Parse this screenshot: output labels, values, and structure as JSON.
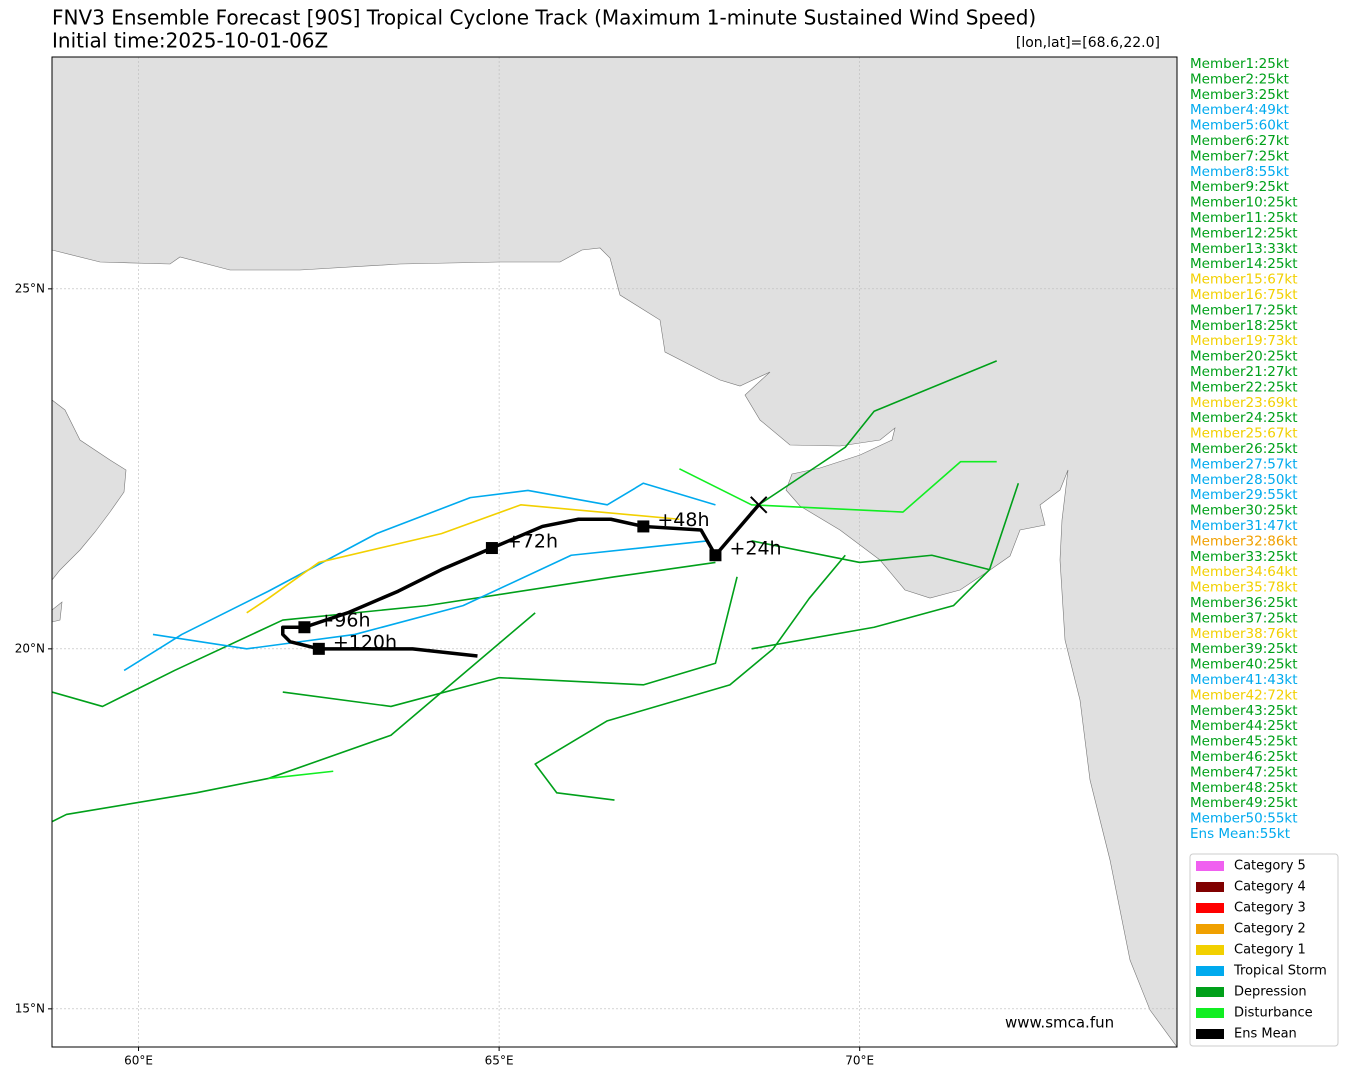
{
  "chart_data": {
    "type": "track-map",
    "title": "FNV3 Ensemble Forecast [90S] Tropical Cyclone Track (Maximum 1-minute Sustained Wind Speed)",
    "subtitle": "Initial time:2025-10-01-06Z",
    "position_label": "[lon,lat]=[68.6,22.0]",
    "watermark": "www.smca.fun",
    "xlim": [
      58.8,
      74.4
    ],
    "ylim": [
      14.47,
      28.22
    ],
    "xticks": [
      {
        "value": 60,
        "label": "60°E"
      },
      {
        "value": 65,
        "label": "65°E"
      },
      {
        "value": 70,
        "label": "70°E"
      }
    ],
    "yticks": [
      {
        "value": 15,
        "label": "15°N"
      },
      {
        "value": 20,
        "label": "20°N"
      },
      {
        "value": 25,
        "label": "25°N"
      }
    ],
    "grid": true,
    "members": [
      {
        "label": "Member1:25kt",
        "color": "#00a01a"
      },
      {
        "label": "Member2:25kt",
        "color": "#00a01a"
      },
      {
        "label": "Member3:25kt",
        "color": "#00a01a"
      },
      {
        "label": "Member4:49kt",
        "color": "#00aaee"
      },
      {
        "label": "Member5:60kt",
        "color": "#00aaee"
      },
      {
        "label": "Member6:27kt",
        "color": "#00a01a"
      },
      {
        "label": "Member7:25kt",
        "color": "#00a01a"
      },
      {
        "label": "Member8:55kt",
        "color": "#00aaee"
      },
      {
        "label": "Member9:25kt",
        "color": "#00a01a"
      },
      {
        "label": "Member10:25kt",
        "color": "#00a01a"
      },
      {
        "label": "Member11:25kt",
        "color": "#00a01a"
      },
      {
        "label": "Member12:25kt",
        "color": "#00a01a"
      },
      {
        "label": "Member13:33kt",
        "color": "#00a01a"
      },
      {
        "label": "Member14:25kt",
        "color": "#00a01a"
      },
      {
        "label": "Member15:67kt",
        "color": "#f2d000"
      },
      {
        "label": "Member16:75kt",
        "color": "#f2d000"
      },
      {
        "label": "Member17:25kt",
        "color": "#00a01a"
      },
      {
        "label": "Member18:25kt",
        "color": "#00a01a"
      },
      {
        "label": "Member19:73kt",
        "color": "#f2d000"
      },
      {
        "label": "Member20:25kt",
        "color": "#00a01a"
      },
      {
        "label": "Member21:27kt",
        "color": "#00a01a"
      },
      {
        "label": "Member22:25kt",
        "color": "#00a01a"
      },
      {
        "label": "Member23:69kt",
        "color": "#f2d000"
      },
      {
        "label": "Member24:25kt",
        "color": "#00a01a"
      },
      {
        "label": "Member25:67kt",
        "color": "#f2d000"
      },
      {
        "label": "Member26:25kt",
        "color": "#00a01a"
      },
      {
        "label": "Member27:57kt",
        "color": "#00aaee"
      },
      {
        "label": "Member28:50kt",
        "color": "#00aaee"
      },
      {
        "label": "Member29:55kt",
        "color": "#00aaee"
      },
      {
        "label": "Member30:25kt",
        "color": "#00a01a"
      },
      {
        "label": "Member31:47kt",
        "color": "#00aaee"
      },
      {
        "label": "Member32:86kt",
        "color": "#f0a000"
      },
      {
        "label": "Member33:25kt",
        "color": "#00a01a"
      },
      {
        "label": "Member34:64kt",
        "color": "#f2d000"
      },
      {
        "label": "Member35:78kt",
        "color": "#f2d000"
      },
      {
        "label": "Member36:25kt",
        "color": "#00a01a"
      },
      {
        "label": "Member37:25kt",
        "color": "#00a01a"
      },
      {
        "label": "Member38:76kt",
        "color": "#f2d000"
      },
      {
        "label": "Member39:25kt",
        "color": "#00a01a"
      },
      {
        "label": "Member40:25kt",
        "color": "#00a01a"
      },
      {
        "label": "Member41:43kt",
        "color": "#00aaee"
      },
      {
        "label": "Member42:72kt",
        "color": "#f2d000"
      },
      {
        "label": "Member43:25kt",
        "color": "#00a01a"
      },
      {
        "label": "Member44:25kt",
        "color": "#00a01a"
      },
      {
        "label": "Member45:25kt",
        "color": "#00a01a"
      },
      {
        "label": "Member46:25kt",
        "color": "#00a01a"
      },
      {
        "label": "Member47:25kt",
        "color": "#00a01a"
      },
      {
        "label": "Member48:25kt",
        "color": "#00a01a"
      },
      {
        "label": "Member49:25kt",
        "color": "#00a01a"
      },
      {
        "label": "Member50:55kt",
        "color": "#00aaee"
      },
      {
        "label": "Ens Mean:55kt",
        "color": "#00aaee"
      }
    ],
    "legend": [
      {
        "name": "Category 5",
        "color": "#f060f0"
      },
      {
        "name": "Category 4",
        "color": "#800000"
      },
      {
        "name": "Category 3",
        "color": "#ff0000"
      },
      {
        "name": "Category 2",
        "color": "#f0a000"
      },
      {
        "name": "Category 1",
        "color": "#f2d000"
      },
      {
        "name": "Tropical Storm",
        "color": "#00aaee"
      },
      {
        "name": "Depression",
        "color": "#00a01a"
      },
      {
        "name": "Disturbance",
        "color": "#11ee22"
      },
      {
        "name": "Ens Mean",
        "color": "#000000"
      }
    ],
    "tracks": [
      {
        "color": "#00a01a",
        "lon": [
          68.6,
          69.8,
          70.2,
          71.9
        ],
        "lat": [
          22.0,
          22.8,
          23.3,
          24.0
        ]
      },
      {
        "color": "#00a01a",
        "lon": [
          68.5,
          70.0,
          71.0,
          71.8,
          72.2
        ],
        "lat": [
          21.5,
          21.2,
          21.3,
          21.1,
          22.3
        ]
      },
      {
        "color": "#00aaee",
        "lon": [
          68.0,
          67.0,
          66.5,
          65.4,
          64.6,
          63.3,
          61.8,
          60.6,
          59.8
        ],
        "lat": [
          22.0,
          22.3,
          22.0,
          22.2,
          22.1,
          21.6,
          20.8,
          20.2,
          19.7
        ]
      },
      {
        "color": "#f2d000",
        "lon": [
          67.5,
          65.3,
          64.2,
          62.5,
          61.8,
          61.5
        ],
        "lat": [
          21.8,
          22.0,
          21.6,
          21.2,
          20.7,
          20.5
        ]
      },
      {
        "color": "#00a01a",
        "lon": [
          68.0,
          66.6,
          64.0,
          62.0,
          60.5,
          59.5,
          58.8
        ],
        "lat": [
          21.2,
          21.0,
          20.6,
          20.4,
          19.7,
          19.2,
          19.4
        ]
      },
      {
        "color": "#00a01a",
        "lon": [
          65.5,
          63.5,
          61.8,
          60.8,
          59.0,
          58.8
        ],
        "lat": [
          20.5,
          18.8,
          18.2,
          18.0,
          17.7,
          17.6
        ]
      },
      {
        "color": "#11ee22",
        "lon": [
          61.8,
          62.7
        ],
        "lat": [
          18.2,
          18.3
        ]
      },
      {
        "color": "#00a01a",
        "lon": [
          68.3,
          68.0,
          67.0,
          65.0,
          63.5,
          62.0
        ],
        "lat": [
          21.0,
          19.8,
          19.5,
          19.6,
          19.2,
          19.4
        ]
      },
      {
        "color": "#00a01a",
        "lon": [
          69.8,
          69.3,
          68.8,
          68.2,
          66.5,
          65.5,
          65.8,
          66.6
        ],
        "lat": [
          21.3,
          20.7,
          20.0,
          19.5,
          19.0,
          18.4,
          18.0,
          17.9
        ]
      },
      {
        "color": "#00aaee",
        "lon": [
          67.9,
          66.0,
          64.5,
          63.0,
          61.5,
          60.2
        ],
        "lat": [
          21.5,
          21.3,
          20.6,
          20.2,
          20.0,
          20.2
        ]
      },
      {
        "color": "#11ee22",
        "lon": [
          67.5,
          68.5,
          70.6,
          71.4,
          71.9
        ],
        "lat": [
          22.5,
          22.0,
          21.9,
          22.6,
          22.6
        ]
      },
      {
        "color": "#00a01a",
        "lon": [
          68.5,
          70.2,
          71.3,
          71.8
        ],
        "lat": [
          20.0,
          20.3,
          20.6,
          21.1
        ]
      }
    ],
    "ens_mean": {
      "color": "#000000",
      "lon": [
        68.6,
        68.0,
        67.8,
        67.0,
        66.55,
        66.1,
        65.6,
        64.9,
        64.2,
        63.6,
        62.9,
        62.3,
        62.0,
        62.0,
        62.1,
        62.5,
        63.8,
        64.7
      ],
      "lat": [
        22.0,
        21.3,
        21.65,
        21.7,
        21.8,
        21.8,
        21.7,
        21.4,
        21.1,
        20.8,
        20.5,
        20.3,
        20.3,
        20.2,
        20.1,
        20.0,
        20.0,
        19.9
      ],
      "markers": [
        {
          "label": "+24h",
          "lon": 68.0,
          "lat": 21.3
        },
        {
          "label": "+48h",
          "lon": 67.0,
          "lat": 21.7
        },
        {
          "label": "+72h",
          "lon": 64.9,
          "lat": 21.4
        },
        {
          "label": "+96h",
          "lon": 62.3,
          "lat": 20.3
        },
        {
          "label": "+120h",
          "lon": 62.5,
          "lat": 20.0
        }
      ]
    }
  }
}
